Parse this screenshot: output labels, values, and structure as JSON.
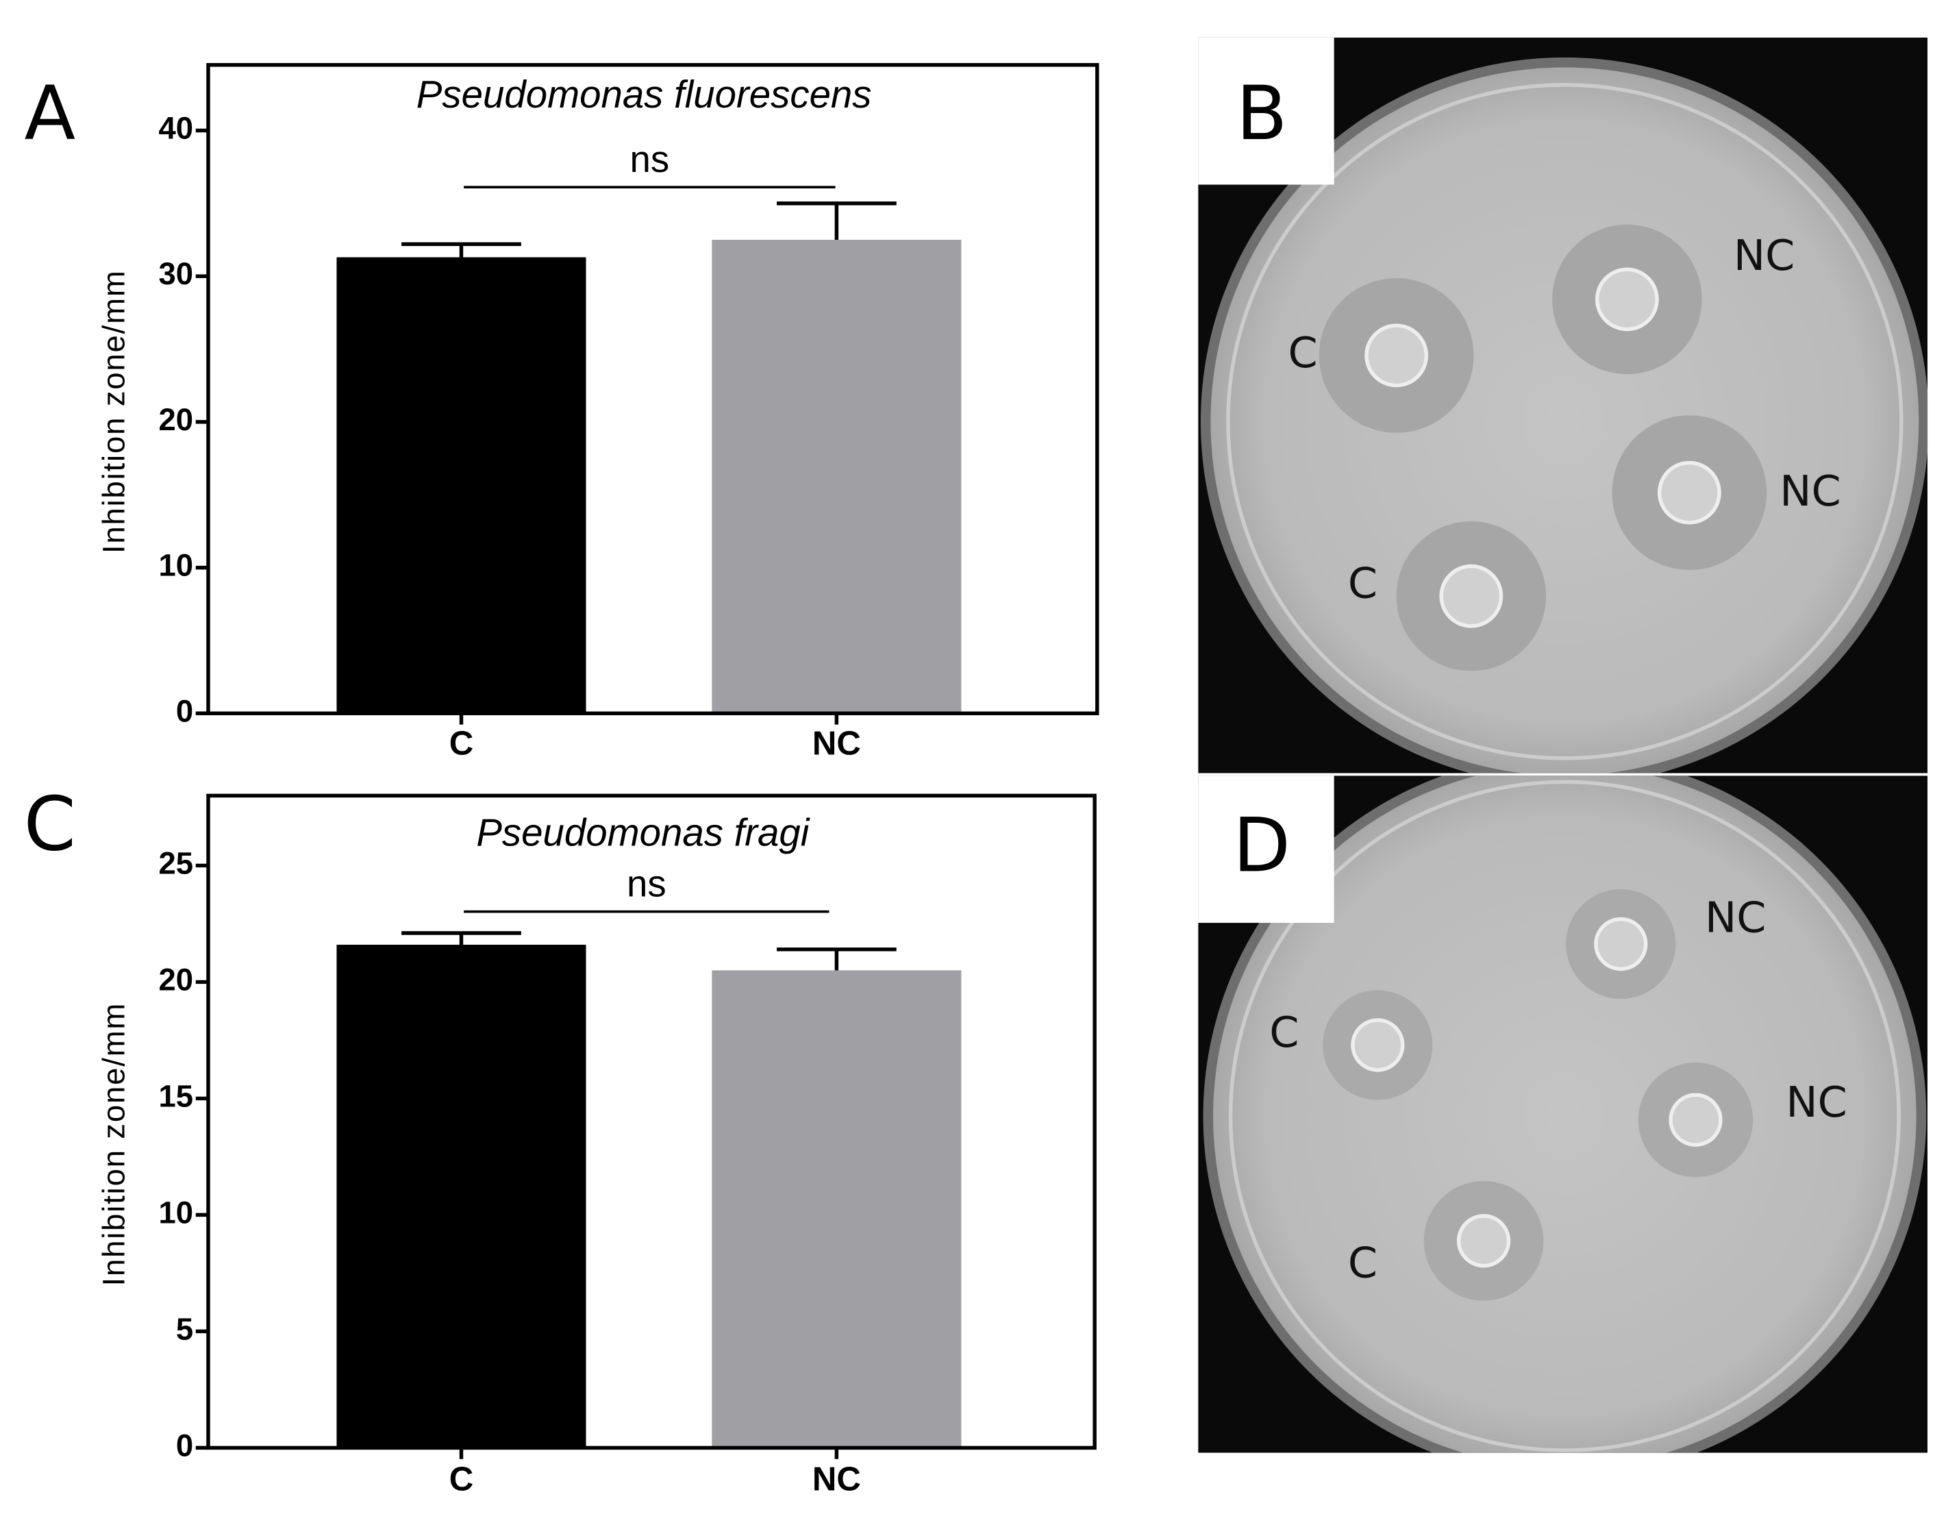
{
  "chart_data": [
    {
      "type": "bar",
      "title": "Pseudomonas fluorescens",
      "y_label": "Inhibition zone/mm",
      "categories": [
        "C",
        "NC"
      ],
      "values": [
        31.3,
        32.5
      ],
      "errors": [
        0.9,
        2.5
      ],
      "colors": [
        "#000000",
        "#a0a0a4"
      ],
      "ylim": [
        0,
        44.5
      ],
      "yticks": [
        0,
        10,
        20,
        30,
        40
      ],
      "annotation": "ns"
    },
    {
      "type": "bar",
      "title": "Pseudomonas fragi",
      "y_label": "Inhibition zone/mm",
      "categories": [
        "C",
        "NC"
      ],
      "values": [
        21.6,
        20.5
      ],
      "errors": [
        0.5,
        0.9
      ],
      "colors": [
        "#000000",
        "#a0a0a4"
      ],
      "ylim": [
        0,
        28
      ],
      "yticks": [
        0,
        5,
        10,
        15,
        20,
        25
      ],
      "annotation": "ns"
    }
  ],
  "figure": {
    "panel_labels": [
      "A",
      "B",
      "C",
      "D"
    ],
    "plates": [
      {
        "labels": [
          "C",
          "NC",
          "NC",
          "C"
        ]
      },
      {
        "labels": [
          "NC",
          "C",
          "NC",
          "C"
        ]
      }
    ]
  }
}
